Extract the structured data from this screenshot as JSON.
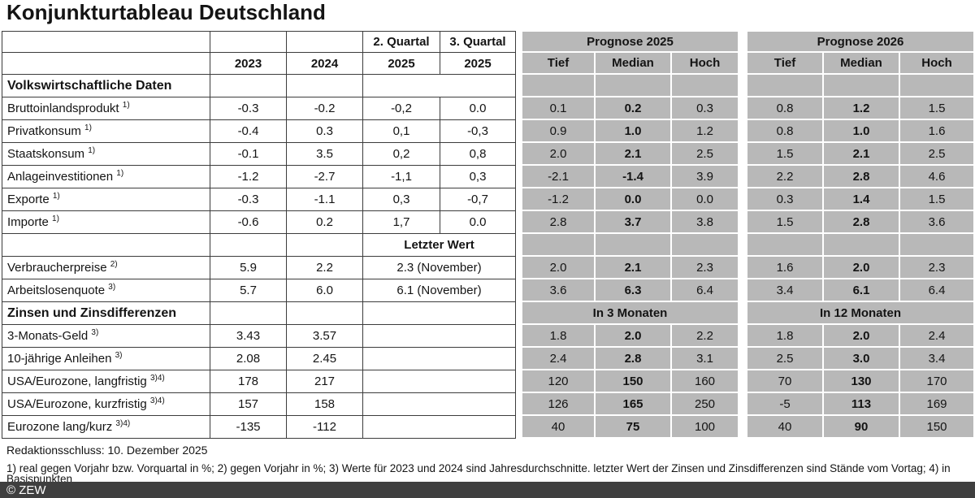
{
  "title": "Konjunkturtableau Deutschland",
  "colors": {
    "cell_gray": "#b8b8b8",
    "footer_bar": "#3f3f3f",
    "table_border": "#3c3c3c"
  },
  "header": {
    "q2": "2. Quartal",
    "q3": "3. Quartal",
    "y2023": "2023",
    "y2024": "2024",
    "y2025a": "2025",
    "y2025b": "2025",
    "prognose2025": "Prognose 2025",
    "prognose2026": "Prognose 2026",
    "tief": "Tief",
    "median": "Median",
    "hoch": "Hoch"
  },
  "rows": [
    {
      "kind": "section",
      "label": "Volkswirtschaftliche Daten"
    },
    {
      "kind": "data4",
      "label": "Bruttoinlandsprodukt",
      "sup": "1)",
      "c2023": "-0.3",
      "c2024": "-0.2",
      "q2": "-0,2",
      "q3": "0.0",
      "p25": [
        "0.1",
        "0.2",
        "0.3"
      ],
      "p26": [
        "0.8",
        "1.2",
        "1.5"
      ]
    },
    {
      "kind": "data4",
      "label": "Privatkonsum",
      "sup": "1)",
      "c2023": "-0.4",
      "c2024": "0.3",
      "q2": "0,1",
      "q3": "-0,3",
      "p25": [
        "0.9",
        "1.0",
        "1.2"
      ],
      "p26": [
        "0.8",
        "1.0",
        "1.6"
      ]
    },
    {
      "kind": "data4",
      "label": "Staatskonsum",
      "sup": "1)",
      "c2023": "-0.1",
      "c2024": "3.5",
      "q2": "0,2",
      "q3": "0,8",
      "p25": [
        "2.0",
        "2.1",
        "2.5"
      ],
      "p26": [
        "1.5",
        "2.1",
        "2.5"
      ]
    },
    {
      "kind": "data4",
      "label": "Anlageinvestitionen",
      "sup": "1)",
      "c2023": "-1.2",
      "c2024": "-2.7",
      "q2": "-1,1",
      "q3": "0,3",
      "p25": [
        "-2.1",
        "-1.4",
        "3.9"
      ],
      "p26": [
        "2.2",
        "2.8",
        "4.6"
      ]
    },
    {
      "kind": "data4",
      "label": "Exporte",
      "sup": "1)",
      "c2023": "-0.3",
      "c2024": "-1.1",
      "q2": "0,3",
      "q3": "-0,7",
      "p25": [
        "-1.2",
        "0.0",
        "0.0"
      ],
      "p26": [
        "0.3",
        "1.4",
        "1.5"
      ]
    },
    {
      "kind": "data4",
      "label": "Importe",
      "sup": "1)",
      "c2023": "-0.6",
      "c2024": "0.2",
      "q2": "1,7",
      "q3": "0.0",
      "p25": [
        "2.8",
        "3.7",
        "3.8"
      ],
      "p26": [
        "1.5",
        "2.8",
        "3.6"
      ]
    },
    {
      "kind": "subhead",
      "merged": "Letzter Wert"
    },
    {
      "kind": "dataM",
      "label": "Verbraucherpreise",
      "sup": "2)",
      "c2023": "5.9",
      "c2024": "2.2",
      "merged": "2.3 (November)",
      "p25": [
        "2.0",
        "2.1",
        "2.3"
      ],
      "p26": [
        "1.6",
        "2.0",
        "2.3"
      ]
    },
    {
      "kind": "dataM",
      "label": "Arbeitslosenquote",
      "sup": "3)",
      "c2023": "5.7",
      "c2024": "6.0",
      "merged": "6.1 (November)",
      "p25": [
        "3.6",
        "6.3",
        "6.4"
      ],
      "p26": [
        "3.4",
        "6.1",
        "6.4"
      ]
    },
    {
      "kind": "section2",
      "label": "Zinsen und Zinsdifferenzen",
      "g25": "In 3 Monaten",
      "g26": "In 12 Monaten"
    },
    {
      "kind": "dataM",
      "label": "3-Monats-Geld",
      "sup": "3)",
      "c2023": "3.43",
      "c2024": "3.57",
      "merged": "",
      "p25": [
        "1.8",
        "2.0",
        "2.2"
      ],
      "p26": [
        "1.8",
        "2.0",
        "2.4"
      ]
    },
    {
      "kind": "dataM",
      "label": "10-jährige Anleihen",
      "sup": "3)",
      "c2023": "2.08",
      "c2024": "2.45",
      "merged": "",
      "p25": [
        "2.4",
        "2.8",
        "3.1"
      ],
      "p26": [
        "2.5",
        "3.0",
        "3.4"
      ]
    },
    {
      "kind": "dataM",
      "label": "USA/Eurozone, langfristig",
      "sup": "3)4)",
      "c2023": "178",
      "c2024": "217",
      "merged": "",
      "p25": [
        "120",
        "150",
        "160"
      ],
      "p26": [
        "70",
        "130",
        "170"
      ]
    },
    {
      "kind": "dataM",
      "label": "USA/Eurozone, kurzfristig",
      "sup": "3)4)",
      "c2023": "157",
      "c2024": "158",
      "merged": "",
      "p25": [
        "126",
        "165",
        "250"
      ],
      "p26": [
        "-5",
        "113",
        "169"
      ]
    },
    {
      "kind": "dataM",
      "label": "Eurozone lang/kurz",
      "sup": "3)4)",
      "c2023": "-135",
      "c2024": "-112",
      "merged": "",
      "p25": [
        "40",
        "75",
        "100"
      ],
      "p26": [
        "40",
        "90",
        "150"
      ]
    }
  ],
  "footer": {
    "redaktionsschluss": "Redaktionsschluss: 10. Dezember 2025",
    "footnote_line1": "1) real gegen Vorjahr bzw. Vorquartal in %; 2) gegen Vorjahr in %; 3) Werte für 2023 und 2024 sind Jahresdurchschnitte. letzter Wert der Zinsen und Zinsdifferenzen sind Stände vom Vortag; 4) in",
    "footnote_line2": "Basispunkten",
    "copyright": "© ZEW"
  }
}
